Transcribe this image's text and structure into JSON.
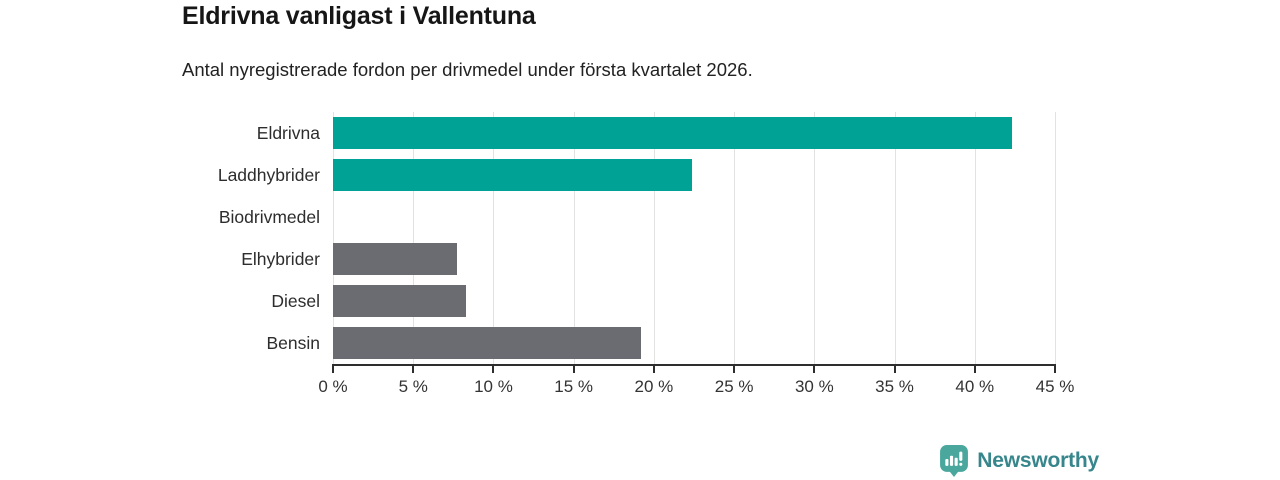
{
  "header": {
    "title": "Eldrivna vanligast i Vallentuna",
    "subtitle": "Antal nyregistrerade fordon per drivmedel under första kvartalet 2026."
  },
  "chart_data": {
    "type": "bar",
    "orientation": "horizontal",
    "title": "Eldrivna vanligast i Vallentuna",
    "subtitle": "Antal nyregistrerade fordon per drivmedel under första kvartalet 2026.",
    "categories": [
      "Eldrivna",
      "Laddhybrider",
      "Biodrivmedel",
      "Elhybrider",
      "Diesel",
      "Bensin"
    ],
    "values": [
      42.3,
      22.4,
      0,
      7.7,
      8.3,
      19.2
    ],
    "unit": "%",
    "bar_colors": [
      "#00a296",
      "#00a296",
      "#00a296",
      "#6b6b72",
      "#6b6b72",
      "#6b6b72"
    ],
    "highlight_color": "#00a296",
    "default_color": "#6b6b72",
    "xlim": [
      0,
      45
    ],
    "x_tick_values": [
      0,
      5,
      10,
      15,
      20,
      25,
      30,
      35,
      40,
      45
    ],
    "x_ticks": [
      "0 %",
      "5 %",
      "10 %",
      "15 %",
      "20 %",
      "25 %",
      "30 %",
      "35 %",
      "40 %",
      "45 %"
    ],
    "grid": true,
    "gridline_color": "#e2e2e2",
    "legend": false
  },
  "footer": {
    "brand": "Newsworthy",
    "brand_color": "#37868c",
    "icon": "newsworthy-pin-chart-icon",
    "icon_color": "#4aa79d"
  }
}
